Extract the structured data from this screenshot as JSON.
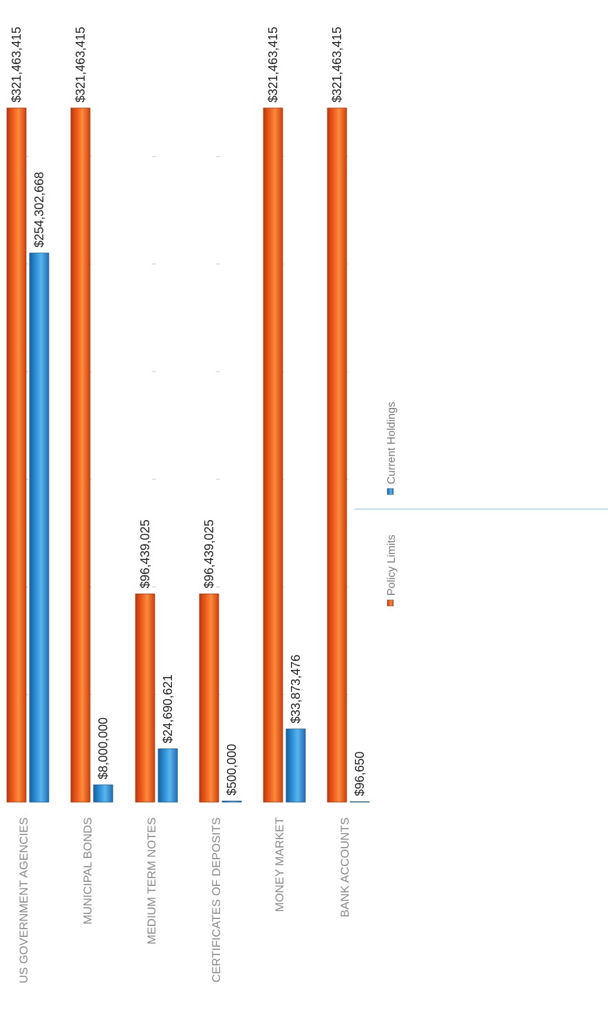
{
  "chart_data": {
    "type": "bar",
    "orientation": "horizontal",
    "rotated_view": "90deg-clockwise",
    "categories": [
      "US GOVERNMENT AGENCIES",
      "MUNICIPAL BONDS",
      "MEDIUM TERM NOTES",
      "CERTIFICATES OF DEPOSITS",
      "MONEY MARKET",
      "BANK ACCOUNTS"
    ],
    "series": [
      {
        "name": "Policy Limits",
        "color": "#e8501c",
        "values": [
          321463415,
          321463415,
          96439025,
          96439025,
          321463415,
          321463415
        ],
        "labels": [
          "$321,463,415",
          "$321,463,415",
          "$96,439,025",
          "$96,439,025",
          "$321,463,415",
          "$321,463,415"
        ]
      },
      {
        "name": "Current Holdings",
        "color": "#2a8fd6",
        "values": [
          254302668,
          8000000,
          24690621,
          500000,
          33873476,
          96650
        ],
        "labels": [
          "$254,302,668",
          "$8,000,000",
          "$24,690,621",
          "$500,000",
          "$33,873,476",
          "$96,650"
        ]
      }
    ],
    "xlim": [
      0,
      321463415
    ],
    "grid": false,
    "legend_position": "bottom"
  }
}
